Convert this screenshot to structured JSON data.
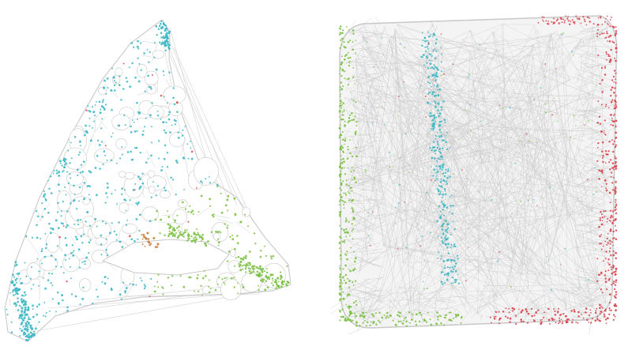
{
  "figure": {
    "panels": [
      {
        "name": "left-graph-embedding",
        "cluster_colors": [
          "#3bb6c4",
          "#7cc142",
          "#d9454f",
          "#c6803a"
        ]
      },
      {
        "name": "right-graph-embedding",
        "cluster_colors": [
          "#7cc142",
          "#3bb6c4",
          "#d9454f"
        ]
      }
    ],
    "colors": {
      "edge": "#c8c8c8",
      "cyan": "#3bb6c4",
      "green": "#7cc142",
      "red": "#d9454f",
      "brown": "#c6803a"
    }
  }
}
